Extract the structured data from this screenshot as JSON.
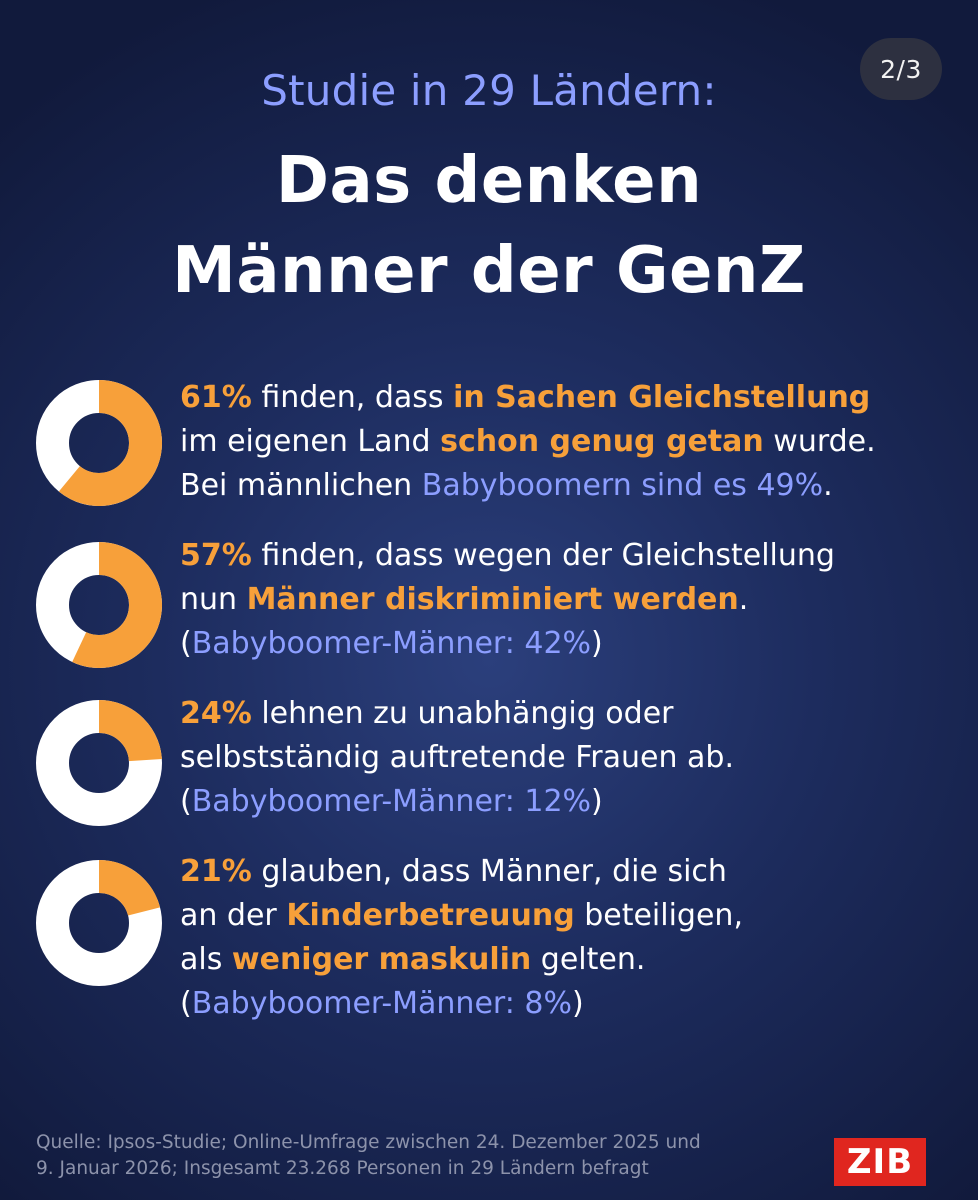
{
  "page_counter": "2/3",
  "header": {
    "subtitle": "Studie in 29 Ländern:",
    "title_line1": "Das denken",
    "title_line2": "Männer der GenZ"
  },
  "colors": {
    "accent_orange": "#f7a03a",
    "accent_blue": "#8c9eff",
    "donut_rest": "#ffffff",
    "logo_red": "#e0261f"
  },
  "chart_data": {
    "type": "pie",
    "variant": "donut",
    "title": "Das denken Männer der GenZ",
    "unit": "%",
    "values": [
      61,
      57,
      24,
      21
    ],
    "comparison_label": "Babyboomer-Männer",
    "comparison_values": [
      49,
      42,
      12,
      8
    ]
  },
  "stats": [
    {
      "lines": [
        [
          {
            "t": "61%",
            "s": "hl"
          },
          {
            "t": " finden, dass ",
            "s": ""
          },
          {
            "t": "in Sachen Gleichstellung",
            "s": "hl"
          }
        ],
        [
          {
            "t": "im eigenen Land ",
            "s": ""
          },
          {
            "t": "schon genug getan",
            "s": "hl"
          },
          {
            "t": " wurde.",
            "s": ""
          }
        ],
        [
          {
            "t": "Bei männlichen ",
            "s": ""
          },
          {
            "t": "Babyboomern sind es 49%",
            "s": "bl"
          },
          {
            "t": ".",
            "s": ""
          }
        ]
      ]
    },
    {
      "lines": [
        [
          {
            "t": "57%",
            "s": "hl"
          },
          {
            "t": " finden, dass wegen der Gleichstellung",
            "s": ""
          }
        ],
        [
          {
            "t": "nun ",
            "s": ""
          },
          {
            "t": "Männer diskriminiert werden",
            "s": "hl"
          },
          {
            "t": ".",
            "s": ""
          }
        ],
        [
          {
            "t": "(",
            "s": ""
          },
          {
            "t": "Babyboomer-Männer: 42%",
            "s": "bl"
          },
          {
            "t": ")",
            "s": ""
          }
        ]
      ]
    },
    {
      "lines": [
        [
          {
            "t": "24%",
            "s": "hl"
          },
          {
            "t": " lehnen zu unabhängig oder",
            "s": ""
          }
        ],
        [
          {
            "t": "selbstständig auftretende Frauen ab.",
            "s": ""
          }
        ],
        [
          {
            "t": "(",
            "s": ""
          },
          {
            "t": "Babyboomer-Männer: 12%",
            "s": "bl"
          },
          {
            "t": ")",
            "s": ""
          }
        ]
      ]
    },
    {
      "lines": [
        [
          {
            "t": "21%",
            "s": "hl"
          },
          {
            "t": " glauben, dass Männer, die sich",
            "s": ""
          }
        ],
        [
          {
            "t": "an der ",
            "s": ""
          },
          {
            "t": "Kinderbetreuung",
            "s": "hl"
          },
          {
            "t": " beteiligen,",
            "s": ""
          }
        ],
        [
          {
            "t": "als ",
            "s": ""
          },
          {
            "t": "weniger maskulin",
            "s": "hl"
          },
          {
            "t": " gelten.",
            "s": ""
          }
        ],
        [
          {
            "t": "(",
            "s": ""
          },
          {
            "t": "Babyboomer-Männer: 8%",
            "s": "bl"
          },
          {
            "t": ")",
            "s": ""
          }
        ]
      ]
    }
  ],
  "footer": {
    "source_line1": "Quelle: Ipsos-Studie; Online-Umfrage zwischen 24. Dezember 2025 und",
    "source_line2": "9. Januar 2026; Insgesamt 23.268 Personen in 29 Ländern befragt",
    "logo_text": "ZIB"
  }
}
